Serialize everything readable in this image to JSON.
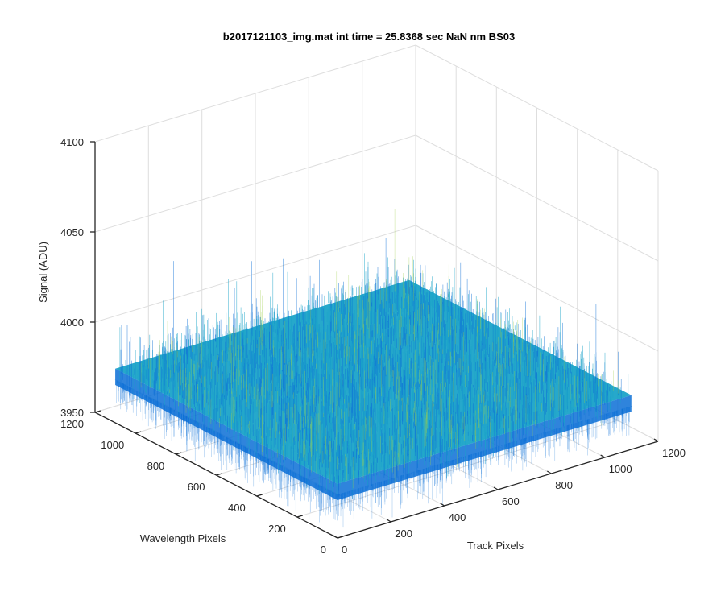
{
  "chart_data": {
    "type": "surface",
    "title": "b2017121103_img.mat int time = 25.8368 sec  NaN nm BS03",
    "xlabel": "Track Pixels",
    "ylabel": "Wavelength Pixels",
    "zlabel": "Signal (ADU)",
    "x_ticks": [
      0,
      200,
      400,
      600,
      800,
      1000,
      1200
    ],
    "y_ticks": [
      0,
      200,
      400,
      600,
      800,
      1000,
      1200
    ],
    "z_ticks": [
      3950,
      4000,
      4050,
      4100
    ],
    "xlim": [
      0,
      1200
    ],
    "ylim": [
      0,
      1200
    ],
    "zlim": [
      3950,
      4100
    ],
    "data_extent": {
      "x": [
        0,
        1100
      ],
      "y": [
        0,
        1100
      ]
    },
    "signal_mean": 3980,
    "signal_noise_range": [
      3958,
      4055
    ],
    "grid": true,
    "colormap": "parula",
    "colors": {
      "low": "#0b6fd6",
      "mid": "#1aa3c8",
      "high": "#9fcf4a"
    }
  }
}
